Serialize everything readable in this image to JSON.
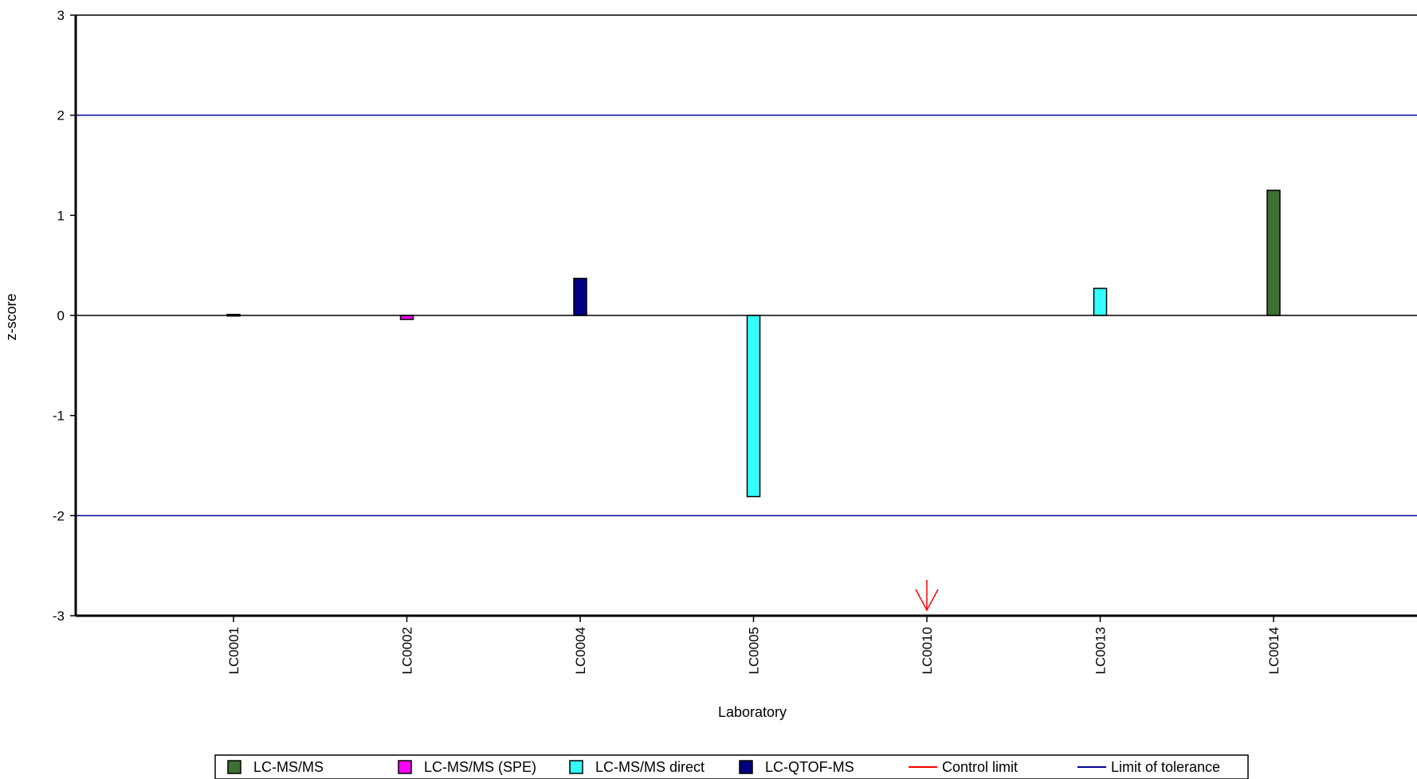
{
  "chart_data": {
    "type": "bar",
    "title": "",
    "xlabel": "Laboratory",
    "ylabel": "z-score",
    "ylim": [
      -3,
      3
    ],
    "yticks": [
      "3",
      "2",
      "1",
      "0",
      "-1",
      "-2",
      "-3"
    ],
    "categories": [
      "LC0001",
      "LC0002",
      "LC0004",
      "LC0005",
      "LC0010",
      "LC0013",
      "LC0014"
    ],
    "bars": [
      {
        "lab": "LC0001",
        "value": 0.01,
        "method": "LC-MS/MS"
      },
      {
        "lab": "LC0002",
        "value": -0.04,
        "method": "LC-MS/MS (SPE)"
      },
      {
        "lab": "LC0004",
        "value": 0.37,
        "method": "LC-QTOF-MS"
      },
      {
        "lab": "LC0005",
        "value": -1.81,
        "method": "LC-MS/MS direct"
      },
      {
        "lab": "LC0013",
        "value": 0.27,
        "method": "LC-MS/MS direct"
      },
      {
        "lab": "LC0014",
        "value": 1.25,
        "method": "LC-MS/MS"
      }
    ],
    "off_scale": [
      {
        "lab": "LC0010",
        "direction": "down",
        "color": "#ff0000"
      }
    ],
    "reference_lines": [
      {
        "name": "Limit of tolerance",
        "values": [
          2,
          -2
        ],
        "color": "#000099"
      }
    ],
    "legend": [
      {
        "label": "LC-MS/MS",
        "type": "box",
        "color": "#3e7033"
      },
      {
        "label": "LC-MS/MS (SPE)",
        "type": "box",
        "color": "#ff00ff"
      },
      {
        "label": "LC-MS/MS direct",
        "type": "box",
        "color": "#33ffff"
      },
      {
        "label": "LC-QTOF-MS",
        "type": "box",
        "color": "#000080"
      },
      {
        "label": "Control limit",
        "type": "line",
        "color": "#ff0000"
      },
      {
        "label": "Limit of tolerance",
        "type": "line",
        "color": "#000099"
      }
    ],
    "legend_position": "bottom",
    "grid": false
  }
}
